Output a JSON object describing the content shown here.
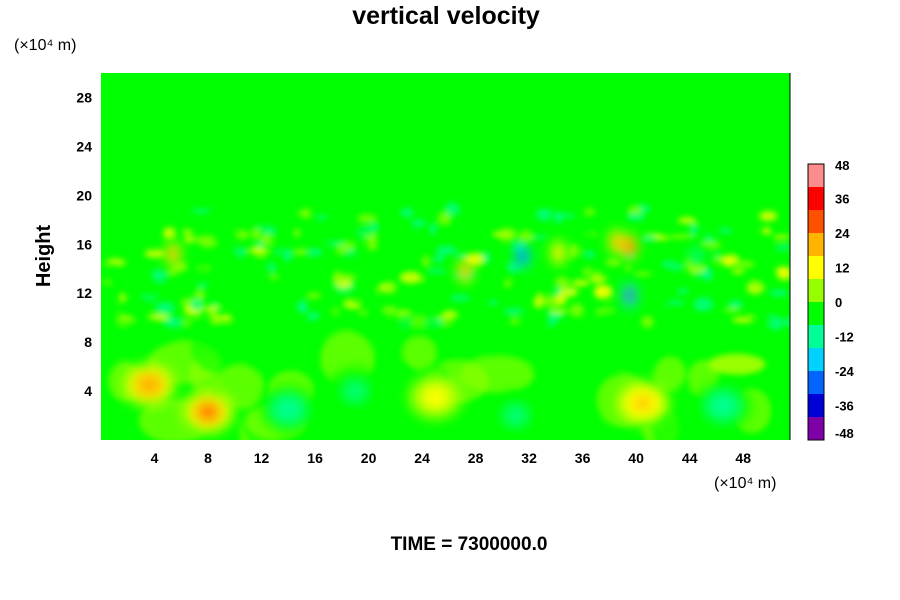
{
  "chart_data": {
    "type": "heatmap",
    "title": "vertical velocity",
    "xlabel": "",
    "ylabel": "Height",
    "x_unit": "(×10⁴ m)",
    "y_unit": "(×10⁴ m)",
    "xlim": [
      0,
      51.5
    ],
    "ylim": [
      0,
      30
    ],
    "x_ticks": [
      4,
      8,
      12,
      16,
      20,
      24,
      28,
      32,
      36,
      40,
      44,
      48
    ],
    "y_ticks": [
      4,
      8,
      12,
      16,
      20,
      24,
      28
    ],
    "colorbar": {
      "min": -48,
      "max": 48,
      "ticks": [
        48,
        36,
        24,
        12,
        0,
        -12,
        -24,
        -36,
        -48
      ],
      "colors": [
        "#7f00a8",
        "#0000d6",
        "#0064ff",
        "#00d2ff",
        "#00ff96",
        "#00ff00",
        "#96ff00",
        "#ffff00",
        "#ffb400",
        "#ff5000",
        "#ff0000",
        "#ff8c8c"
      ]
    },
    "background_value": 0,
    "features": [
      {
        "x": 3.6,
        "y": 4.5,
        "w": 0.45
      },
      {
        "x": 8.0,
        "y": 2.3,
        "w": 0.55
      },
      {
        "x": 5.4,
        "y": 15.2,
        "w": 0.6
      },
      {
        "x": 27.2,
        "y": 13.8,
        "w": 0.65
      },
      {
        "x": 34.2,
        "y": 15.3,
        "w": 0.35
      },
      {
        "x": 38.5,
        "y": 16.2,
        "w": 0.55
      },
      {
        "x": 39.5,
        "y": 15.8,
        "w": 0.7
      },
      {
        "x": 39.5,
        "y": 11.8,
        "w": -0.9
      },
      {
        "x": 31.5,
        "y": 15.0,
        "w": -0.7
      },
      {
        "x": 44.5,
        "y": 15.0,
        "w": -0.3
      },
      {
        "x": 40.5,
        "y": 3.0,
        "w": 0.35
      },
      {
        "x": 25.0,
        "y": 3.5,
        "w": 0.3
      },
      {
        "x": 46.5,
        "y": 2.8,
        "w": -0.3
      },
      {
        "x": 14.0,
        "y": 2.5,
        "w": -0.25
      },
      {
        "x": 19.0,
        "y": 4.0,
        "w": -0.2
      },
      {
        "x": 31.0,
        "y": 2.0,
        "w": -0.2
      }
    ]
  },
  "time_label": "TIME = 7300000.0"
}
